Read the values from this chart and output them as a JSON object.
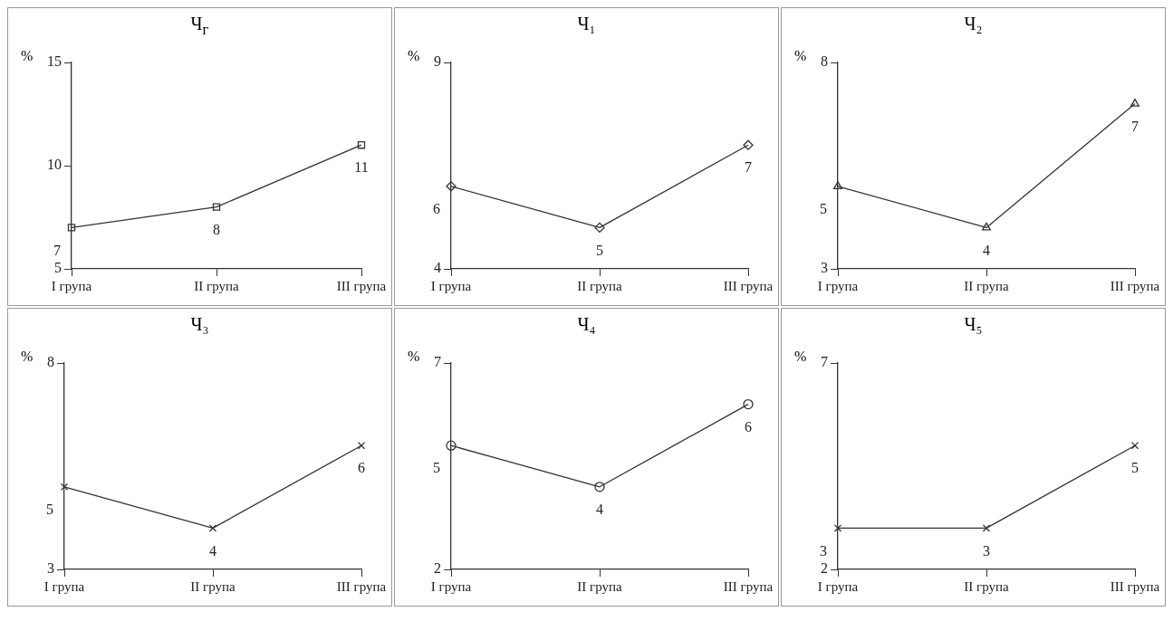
{
  "chart_data": [
    {
      "type": "line",
      "title": "Ч$_{г}$",
      "ylabel": "%",
      "categories": [
        "I група",
        "II група",
        "III група"
      ],
      "values": [
        7,
        8,
        11
      ],
      "ylim": [
        5,
        15
      ],
      "yticks": [
        5,
        10,
        15
      ],
      "marker": "square",
      "color": "#333333",
      "data_labels": true,
      "grid": false
    },
    {
      "type": "line",
      "title": "Ч₁",
      "ylabel": "%",
      "categories": [
        "I група",
        "II група",
        "III група"
      ],
      "values": [
        6,
        5,
        7
      ],
      "ylim": [
        4,
        9
      ],
      "yticks": [
        4,
        9
      ],
      "marker": "diamond",
      "color": "#333333",
      "data_labels": true,
      "grid": false
    },
    {
      "type": "line",
      "title": "Ч₂",
      "ylabel": "%",
      "categories": [
        "I група",
        "II група",
        "III група"
      ],
      "values": [
        5,
        4,
        7
      ],
      "ylim": [
        3,
        8
      ],
      "yticks": [
        3,
        8
      ],
      "marker": "triangle",
      "color": "#333333",
      "data_labels": true,
      "grid": false
    },
    {
      "type": "line",
      "title": "Ч₃",
      "ylabel": "%",
      "categories": [
        "I група",
        "II група",
        "III група"
      ],
      "values": [
        5,
        4,
        6
      ],
      "ylim": [
        3,
        8
      ],
      "yticks": [
        3,
        8
      ],
      "marker": "cross",
      "color": "#333333",
      "data_labels": true,
      "grid": false
    },
    {
      "type": "line",
      "title": "Ч₄",
      "ylabel": "%",
      "categories": [
        "I група",
        "II група",
        "III група"
      ],
      "values": [
        5,
        4,
        6
      ],
      "ylim": [
        2,
        7
      ],
      "yticks": [
        2,
        7
      ],
      "marker": "circle",
      "color": "#333333",
      "data_labels": true,
      "grid": false
    },
    {
      "type": "line",
      "title": "Ч₅",
      "ylabel": "%",
      "categories": [
        "I група",
        "II група",
        "III група"
      ],
      "values": [
        3,
        3,
        5
      ],
      "ylim": [
        2,
        7
      ],
      "yticks": [
        2,
        7
      ],
      "marker": "cross",
      "color": "#333333",
      "data_labels": true,
      "grid": false
    }
  ]
}
